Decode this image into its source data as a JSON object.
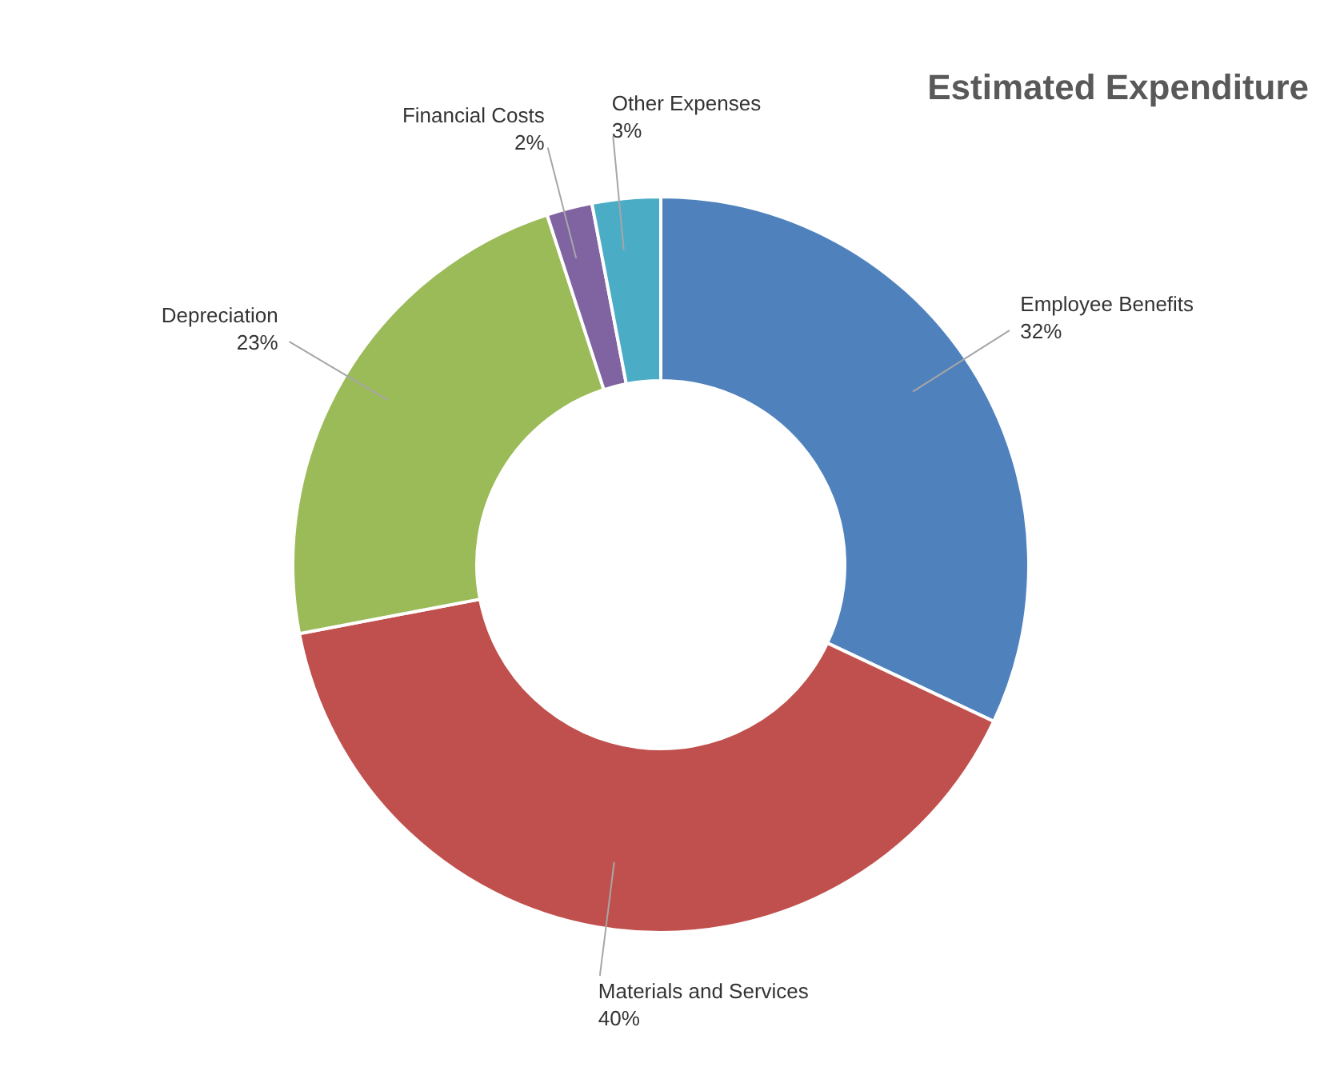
{
  "chart_data": {
    "type": "donut",
    "title": "Estimated Expenditure",
    "categories": [
      "Employee Benefits",
      "Materials and Services",
      "Depreciation",
      "Financial Costs",
      "Other Expenses"
    ],
    "values": [
      32,
      40,
      23,
      2,
      3
    ],
    "value_labels": [
      "32%",
      "40%",
      "23%",
      "2%",
      "3%"
    ],
    "colors": [
      "#4f81bd",
      "#c0504d",
      "#9bbb59",
      "#8064a2",
      "#4bacc6"
    ],
    "legend": false
  }
}
